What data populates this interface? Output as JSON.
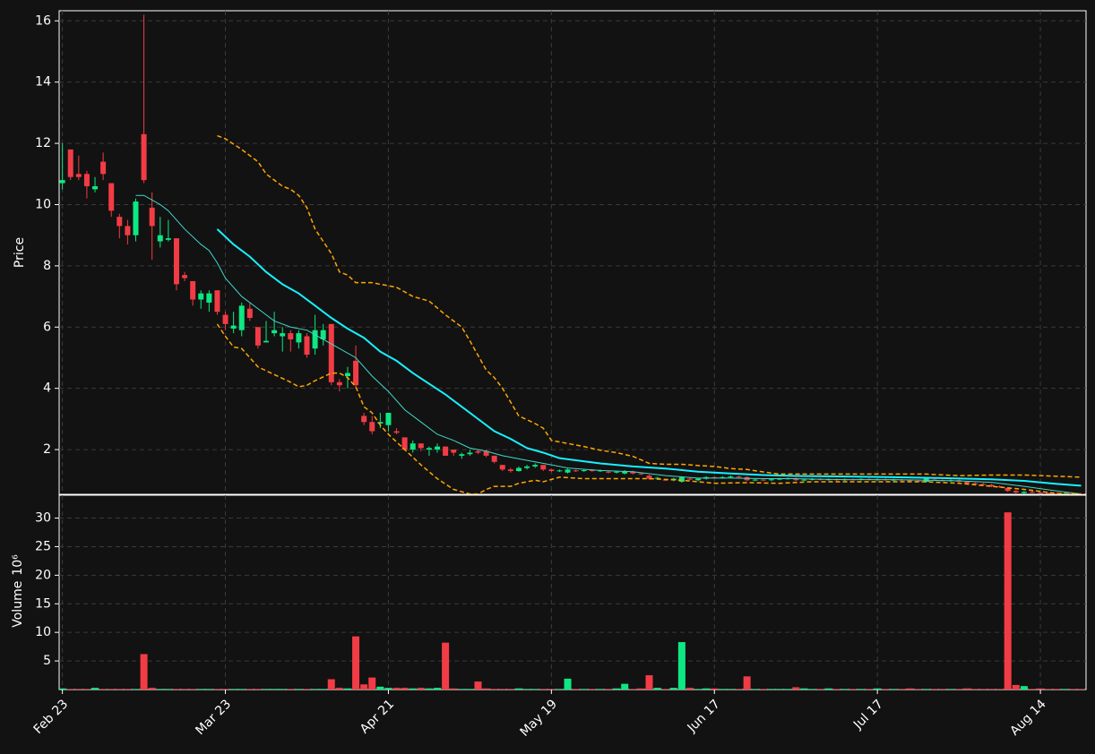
{
  "chart_data": [
    {
      "type": "candlestick",
      "ylabel": "Price",
      "grid": true,
      "up_color": "#0ee882",
      "down_color": "#f23c45",
      "xlim": [
        -0.4,
        125.6
      ],
      "ylim": [
        0.54,
        16.33
      ],
      "yticks": [
        2,
        4,
        6,
        8,
        10,
        12,
        14,
        16
      ],
      "open": [
        10.7,
        11.8,
        11.0,
        11.0,
        10.5,
        11.4,
        10.7,
        9.6,
        9.3,
        9.0,
        12.3,
        9.9,
        8.8,
        8.85,
        8.9,
        7.7,
        7.5,
        6.9,
        6.8,
        7.2,
        6.4,
        5.95,
        5.9,
        6.6,
        6.0,
        5.5,
        5.8,
        5.7,
        5.8,
        5.5,
        5.7,
        5.3,
        5.6,
        6.1,
        4.2,
        4.4,
        4.9,
        3.1,
        2.9,
        2.85,
        2.8,
        2.6,
        2.4,
        2.0,
        2.2,
        2.0,
        2.0,
        2.1,
        2.0,
        1.8,
        1.85,
        1.95,
        1.95,
        1.8,
        1.5,
        1.35,
        1.3,
        1.4,
        1.45,
        1.5,
        1.35,
        1.3,
        1.25,
        1.32,
        1.3,
        1.33,
        1.3,
        1.28,
        1.25,
        1.22,
        1.28,
        1.22,
        1.15,
        1.05,
        1.02,
        1.0,
        0.95,
        1.05,
        1.0,
        1.05,
        1.1,
        1.08,
        1.1,
        1.12,
        1.1,
        1.0,
        1.02,
        1.0,
        1.03,
        1.05,
        1.06,
        1.0,
        1.02,
        1.04,
        1.02,
        1.03,
        1.01,
        1.03,
        1.02,
        1.04,
        1.02,
        1.03,
        1.01,
        1.02,
        1.0,
        0.98,
        0.95,
        1.02,
        1.0,
        0.98,
        1.0,
        0.95,
        0.9,
        0.88,
        0.85,
        0.8,
        0.75,
        0.65,
        0.58,
        0.62,
        0.6,
        0.58,
        0.57,
        0.56,
        0.57,
        0.56
      ],
      "high": [
        12.0,
        11.8,
        11.6,
        11.1,
        10.9,
        11.7,
        10.7,
        9.7,
        9.5,
        10.2,
        16.2,
        10.4,
        9.6,
        9.5,
        8.9,
        7.8,
        7.5,
        7.2,
        7.2,
        7.2,
        6.5,
        6.5,
        6.8,
        6.8,
        6.0,
        6.2,
        6.5,
        6.0,
        5.9,
        5.9,
        5.8,
        6.4,
        6.1,
        6.1,
        4.3,
        4.7,
        5.4,
        3.2,
        3.1,
        3.2,
        3.2,
        2.7,
        2.4,
        2.3,
        2.2,
        2.1,
        2.2,
        2.1,
        2.0,
        1.9,
        2.0,
        2.0,
        2.0,
        1.8,
        1.5,
        1.4,
        1.45,
        1.5,
        1.55,
        1.5,
        1.38,
        1.35,
        1.38,
        1.35,
        1.36,
        1.36,
        1.35,
        1.31,
        1.31,
        1.33,
        1.31,
        1.25,
        1.18,
        1.11,
        1.05,
        1.08,
        1.13,
        1.08,
        1.08,
        1.13,
        1.13,
        1.13,
        1.15,
        1.15,
        1.13,
        1.05,
        1.05,
        1.06,
        1.08,
        1.09,
        1.09,
        1.05,
        1.07,
        1.07,
        1.06,
        1.06,
        1.06,
        1.06,
        1.07,
        1.07,
        1.06,
        1.06,
        1.05,
        1.05,
        1.03,
        1.01,
        1.08,
        1.05,
        1.03,
        1.03,
        1.03,
        0.98,
        0.93,
        0.91,
        0.88,
        0.83,
        0.78,
        0.68,
        0.65,
        0.65,
        0.63,
        0.6,
        0.6,
        0.6,
        0.6,
        0.58
      ],
      "low": [
        10.5,
        10.8,
        10.8,
        10.2,
        10.4,
        10.8,
        9.6,
        8.9,
        8.7,
        8.8,
        10.7,
        8.2,
        8.6,
        8.8,
        7.2,
        7.5,
        6.7,
        6.6,
        6.5,
        6.4,
        5.9,
        5.8,
        5.7,
        6.2,
        5.3,
        5.5,
        5.7,
        5.2,
        5.2,
        5.3,
        5.0,
        5.1,
        5.4,
        4.1,
        3.9,
        4.0,
        4.0,
        2.8,
        2.5,
        2.7,
        2.6,
        2.5,
        2.0,
        1.9,
        1.95,
        1.8,
        1.9,
        1.8,
        1.8,
        1.7,
        1.8,
        1.85,
        1.75,
        1.55,
        1.3,
        1.25,
        1.28,
        1.35,
        1.4,
        1.3,
        1.27,
        1.27,
        1.22,
        1.27,
        1.27,
        1.27,
        1.27,
        1.22,
        1.22,
        1.19,
        1.19,
        1.17,
        1.02,
        1.02,
        0.97,
        0.97,
        0.92,
        1.0,
        0.97,
        1.02,
        1.05,
        1.05,
        1.07,
        1.07,
        0.97,
        0.97,
        0.97,
        0.97,
        1.0,
        1.02,
        0.97,
        0.97,
        0.99,
        0.99,
        0.99,
        0.98,
        0.98,
        0.99,
        0.99,
        0.99,
        0.99,
        0.98,
        0.98,
        0.97,
        0.95,
        0.93,
        0.92,
        0.97,
        0.95,
        0.95,
        0.92,
        0.87,
        0.85,
        0.82,
        0.77,
        0.75,
        0.62,
        0.57,
        0.56,
        0.57,
        0.56,
        0.55,
        0.55,
        0.55,
        0.55,
        0.54
      ],
      "close": [
        10.8,
        10.9,
        10.9,
        10.6,
        10.6,
        11.0,
        9.8,
        9.3,
        9.0,
        10.1,
        10.8,
        9.3,
        9.0,
        8.9,
        7.4,
        7.6,
        6.9,
        7.1,
        7.1,
        6.5,
        6.1,
        6.05,
        6.7,
        6.3,
        5.4,
        5.55,
        5.9,
        5.8,
        5.6,
        5.8,
        5.1,
        5.9,
        5.9,
        4.2,
        4.1,
        4.5,
        4.1,
        2.9,
        2.6,
        2.9,
        3.2,
        2.55,
        2.0,
        2.2,
        2.05,
        2.05,
        2.1,
        1.8,
        1.9,
        1.85,
        1.9,
        1.9,
        1.8,
        1.6,
        1.35,
        1.3,
        1.4,
        1.45,
        1.5,
        1.35,
        1.3,
        1.32,
        1.35,
        1.3,
        1.33,
        1.3,
        1.32,
        1.25,
        1.28,
        1.3,
        1.22,
        1.2,
        1.05,
        1.08,
        1.0,
        1.05,
        1.1,
        1.03,
        1.05,
        1.1,
        1.08,
        1.1,
        1.12,
        1.1,
        1.0,
        1.02,
        1.0,
        1.03,
        1.05,
        1.06,
        1.0,
        1.02,
        1.04,
        1.02,
        1.03,
        1.01,
        1.03,
        1.02,
        1.04,
        1.02,
        1.03,
        1.01,
        1.02,
        1.0,
        0.98,
        0.96,
        1.05,
        1.0,
        0.98,
        1.0,
        0.95,
        0.9,
        0.88,
        0.85,
        0.8,
        0.78,
        0.65,
        0.6,
        0.62,
        0.6,
        0.58,
        0.57,
        0.56,
        0.57,
        0.56,
        0.55
      ],
      "lines": [
        {
          "color": "#3fd9c8",
          "linewidth": 1,
          "dash": false,
          "x": [
            9,
            10,
            12,
            13,
            15,
            17,
            18,
            19,
            20,
            22,
            24,
            26,
            28,
            30,
            32,
            34,
            36,
            38,
            40,
            42,
            44,
            46,
            48,
            50,
            52,
            54,
            56,
            58,
            60,
            62,
            66,
            70,
            74,
            78,
            82,
            86,
            90,
            96,
            102,
            106,
            110,
            114,
            118,
            122,
            125
          ],
          "values": [
            10.3,
            10.3,
            10.0,
            9.8,
            9.2,
            8.7,
            8.5,
            8.1,
            7.6,
            7.0,
            6.6,
            6.2,
            6.0,
            5.9,
            5.6,
            5.3,
            5.0,
            4.4,
            3.9,
            3.3,
            2.9,
            2.5,
            2.3,
            2.05,
            1.95,
            1.8,
            1.7,
            1.6,
            1.5,
            1.4,
            1.32,
            1.28,
            1.15,
            1.07,
            1.07,
            1.05,
            1.05,
            1.02,
            1.02,
            1.0,
            0.98,
            0.93,
            0.8,
            0.65,
            0.55
          ]
        },
        {
          "color": "#18f0ff",
          "linewidth": 2,
          "dash": false,
          "x": [
            19,
            21,
            23,
            25,
            27,
            29,
            31,
            33,
            35,
            37,
            39,
            41,
            43,
            45,
            47,
            49,
            51,
            53,
            55,
            57,
            59,
            61,
            63,
            66,
            70,
            74,
            78,
            82,
            86,
            90,
            96,
            102,
            108,
            114,
            118,
            122,
            125
          ],
          "values": [
            9.2,
            8.7,
            8.3,
            7.8,
            7.4,
            7.1,
            6.7,
            6.3,
            5.95,
            5.65,
            5.2,
            4.9,
            4.5,
            4.15,
            3.8,
            3.4,
            3.0,
            2.6,
            2.35,
            2.05,
            1.9,
            1.72,
            1.65,
            1.55,
            1.45,
            1.38,
            1.28,
            1.22,
            1.17,
            1.14,
            1.12,
            1.1,
            1.07,
            1.03,
            0.98,
            0.88,
            0.82
          ]
        },
        {
          "color": "#ffa500",
          "linewidth": 1.5,
          "dash": true,
          "x": [
            19,
            20,
            22,
            24,
            25,
            27,
            28,
            29,
            30,
            31,
            33,
            34,
            35,
            36,
            38,
            40,
            41,
            43,
            45,
            47,
            49,
            50,
            52,
            53,
            54,
            56,
            58,
            59,
            60,
            62,
            64,
            66,
            68,
            70,
            72,
            74,
            76,
            78,
            80,
            82,
            84,
            86,
            88,
            92,
            98,
            106,
            110,
            114,
            118,
            122,
            125
          ],
          "values": [
            12.25,
            12.15,
            11.8,
            11.4,
            11.0,
            10.6,
            10.5,
            10.3,
            9.9,
            9.2,
            8.4,
            7.8,
            7.7,
            7.45,
            7.45,
            7.35,
            7.3,
            7.0,
            6.85,
            6.4,
            6.0,
            5.55,
            4.6,
            4.35,
            4.0,
            3.1,
            2.85,
            2.7,
            2.3,
            2.2,
            2.1,
            1.98,
            1.9,
            1.78,
            1.55,
            1.52,
            1.52,
            1.48,
            1.45,
            1.38,
            1.35,
            1.27,
            1.2,
            1.2,
            1.2,
            1.2,
            1.15,
            1.17,
            1.17,
            1.13,
            1.1
          ]
        },
        {
          "color": "#ffa500",
          "linewidth": 1.5,
          "dash": true,
          "x": [
            19,
            20,
            21,
            22,
            24,
            26,
            28,
            29,
            30,
            31,
            33,
            34,
            35,
            36,
            37,
            38,
            39,
            40,
            42,
            44,
            46,
            48,
            50,
            51,
            52,
            53,
            54,
            55,
            56,
            58,
            59,
            61,
            64,
            68,
            72,
            76,
            80,
            84,
            88,
            92,
            100,
            106,
            110,
            114,
            118,
            122,
            125
          ],
          "values": [
            6.1,
            5.7,
            5.35,
            5.3,
            4.7,
            4.45,
            4.2,
            4.05,
            4.1,
            4.25,
            4.5,
            4.5,
            4.35,
            4.05,
            3.4,
            3.2,
            2.8,
            2.5,
            2.0,
            1.5,
            1.05,
            0.7,
            0.55,
            0.55,
            0.7,
            0.8,
            0.8,
            0.8,
            0.9,
            1.0,
            0.95,
            1.1,
            1.05,
            1.05,
            1.05,
            1.0,
            0.9,
            0.92,
            0.9,
            0.95,
            0.95,
            0.95,
            0.9,
            0.8,
            0.7,
            0.57,
            0.55
          ]
        }
      ]
    },
    {
      "type": "bar",
      "ylabel": "Volume",
      "ylabel_scale": "10⁶",
      "grid": true,
      "xlim": [
        -0.4,
        125.6
      ],
      "ylim": [
        0,
        34
      ],
      "yticks": [
        5,
        10,
        15,
        20,
        25,
        30
      ],
      "xticks": [
        {
          "value": 0,
          "label": "Feb 23"
        },
        {
          "value": 20,
          "label": "Mar 23"
        },
        {
          "value": 40,
          "label": "Apr 21"
        },
        {
          "value": 60,
          "label": "May 19"
        },
        {
          "value": 80,
          "label": "Jun 17"
        },
        {
          "value": 100,
          "label": "Jul 17"
        },
        {
          "value": 120,
          "label": "Aug 14"
        }
      ],
      "values": [
        0.2,
        0.1,
        0.1,
        0.1,
        0.3,
        0.1,
        0.1,
        0.1,
        0.1,
        0.1,
        6.2,
        0.3,
        0.1,
        0.1,
        0.1,
        0.1,
        0.1,
        0.1,
        0.1,
        0.1,
        0.1,
        0.1,
        0.1,
        0.1,
        0.1,
        0.1,
        0.1,
        0.1,
        0.1,
        0.1,
        0.1,
        0.1,
        0.1,
        1.8,
        0.3,
        0.2,
        9.3,
        0.9,
        2.1,
        0.5,
        0.3,
        0.3,
        0.3,
        0.2,
        0.3,
        0.2,
        0.3,
        8.2,
        0.2,
        0.1,
        0.1,
        1.4,
        0.2,
        0.1,
        0.1,
        0.1,
        0.2,
        0.1,
        0.1,
        0.1,
        0.1,
        0.1,
        1.9,
        0.1,
        0.1,
        0.1,
        0.1,
        0.1,
        0.2,
        1.0,
        0.1,
        0.2,
        2.5,
        0.3,
        0.1,
        0.3,
        8.3,
        0.3,
        0.1,
        0.2,
        0.2,
        0.1,
        0.1,
        0.1,
        2.3,
        0.1,
        0.1,
        0.1,
        0.1,
        0.1,
        0.4,
        0.2,
        0.1,
        0.1,
        0.2,
        0.1,
        0.1,
        0.1,
        0.1,
        0.1,
        0.2,
        0.1,
        0.1,
        0.1,
        0.2,
        0.1,
        0.1,
        0.1,
        0.1,
        0.1,
        0.1,
        0.2,
        0.1,
        0.1,
        0.1,
        0.1,
        31,
        0.8,
        0.6,
        0.1,
        0.2,
        0.1,
        0.1,
        0.1,
        0.1,
        0.1
      ]
    }
  ]
}
